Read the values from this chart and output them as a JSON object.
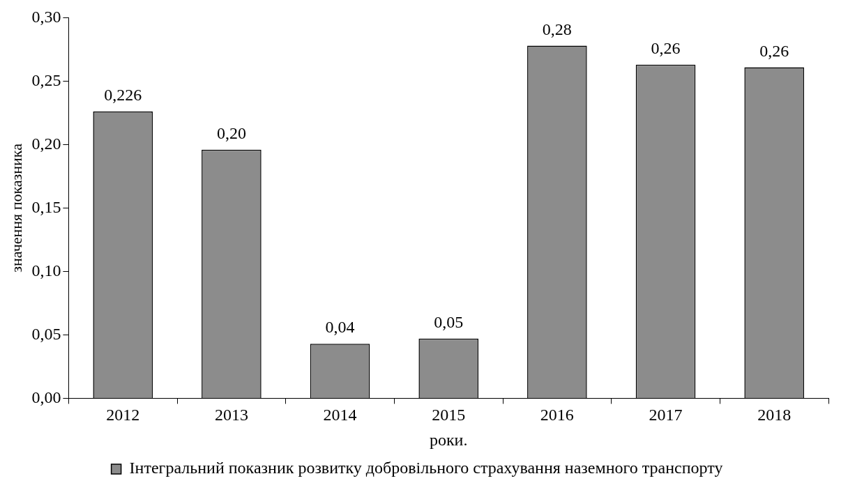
{
  "chart_data": {
    "type": "bar",
    "xlabel": "роки.",
    "ylabel": "значення показника",
    "categories": [
      "2012",
      "2013",
      "2014",
      "2015",
      "2016",
      "2017",
      "2018"
    ],
    "series": [
      {
        "name": "Інтегральний показник розвитку добровільного страхування наземного транспорту",
        "color": "#8c8c8c",
        "values": [
          0.226,
          0.196,
          0.043,
          0.047,
          0.278,
          0.263,
          0.261
        ],
        "value_labels": [
          "0,226",
          "0,20",
          "0,04",
          "0,05",
          "0,28",
          "0,26",
          "0,26"
        ]
      }
    ],
    "ylim": [
      0,
      0.3
    ],
    "yticks": [
      {
        "value": 0,
        "label": "0,00"
      },
      {
        "value": 0.05,
        "label": "0,05"
      },
      {
        "value": 0.1,
        "label": "0,10"
      },
      {
        "value": 0.15,
        "label": "0,15"
      },
      {
        "value": 0.2,
        "label": "0,20"
      },
      {
        "value": 0.25,
        "label": "0,25"
      },
      {
        "value": 0.3,
        "label": "0,30"
      }
    ],
    "grid": false,
    "legend": "bottom"
  }
}
